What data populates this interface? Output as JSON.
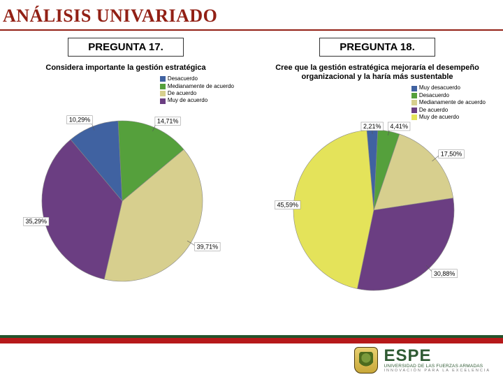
{
  "page": {
    "title": "ANÁLISIS UNIVARIADO",
    "title_color": "#922015"
  },
  "charts": [
    {
      "question_label": "PREGUNTA 17.",
      "title": "Considera importante la gestión estratégica",
      "type": "pie",
      "background_color": "#ffffff",
      "slices": [
        {
          "label": "Desacuerdo",
          "value": 10.29,
          "color": "#4062a1",
          "pct_label": "10,29%"
        },
        {
          "label": "Medianamente de acuerdo",
          "value": 14.71,
          "color": "#55a03c",
          "pct_label": "14,71%"
        },
        {
          "label": "De acuerdo",
          "value": 39.71,
          "color": "#d7cf8e",
          "pct_label": "39,71%"
        },
        {
          "label": "Muy de acuerdo",
          "value": 35.29,
          "color": "#6b3e82",
          "pct_label": "35,29%"
        }
      ],
      "legend_fontsize": 8,
      "label_fontsize": 9,
      "start_angle": -130
    },
    {
      "question_label": "PREGUNTA 18.",
      "title": "Cree que la gestión estratégica mejoraría el desempeño organizacional y la haría más sustentable",
      "type": "pie",
      "background_color": "#ffffff",
      "slices": [
        {
          "label": "Muy desacuerdo",
          "value": 2.21,
          "color": "#4062a1",
          "pct_label": "2,21%"
        },
        {
          "label": "Desacuerdo",
          "value": 4.41,
          "color": "#55a03c",
          "pct_label": "4,41%"
        },
        {
          "label": "Medianamente de acuerdo",
          "value": 17.5,
          "color": "#d7cf8e",
          "pct_label": "17,50%"
        },
        {
          "label": "De acuerdo",
          "value": 30.88,
          "color": "#6b3e82",
          "pct_label": "30,88%"
        },
        {
          "label": "Muy de acuerdo",
          "value": 45.59,
          "color": "#e4e35a",
          "pct_label": "45,59%"
        }
      ],
      "legend_fontsize": 8,
      "label_fontsize": 9,
      "start_angle": -95
    }
  ],
  "footer": {
    "bar_top_color": "#23542c",
    "bar_accent_color": "#b6191a",
    "logo_main": "ESPE",
    "logo_sub1": "UNIVERSIDAD DE LAS FUERZAS ARMADAS",
    "logo_sub2": "INNOVACIÓN PARA LA EXCELENCIA",
    "logo_color": "#2f5a33"
  }
}
